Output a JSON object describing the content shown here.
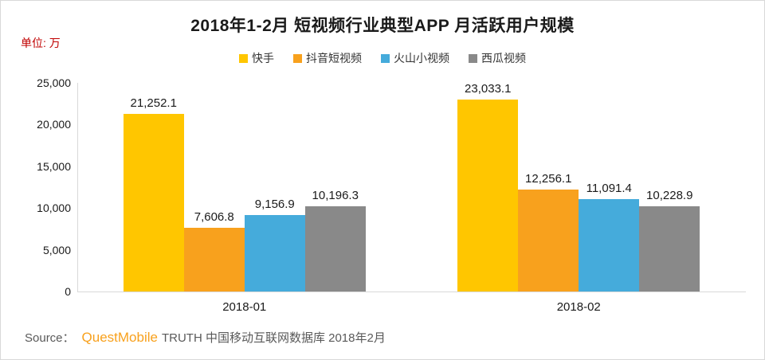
{
  "title": "2018年1-2月 短视频行业典型APP 月活跃用户规模",
  "unit_label": "单位: 万",
  "source": {
    "prefix": "Source：",
    "brand": "QuestMobile",
    "suffix": "TRUTH 中国移动互联网数据库 2018年2月"
  },
  "colors": {
    "background": "#FFFFFF",
    "page_border": "#D9D9D9",
    "title_text": "#1A1A1A",
    "unit_label": "#C00000",
    "axis_text": "#1A1A1A",
    "axis_line": "#D9D9D9",
    "value_label": "#1A1A1A",
    "legend_text": "#333333",
    "source_text": "#595959",
    "brand_orange": "#F8A11D"
  },
  "chart_data": {
    "type": "bar",
    "categories": [
      "2018-01",
      "2018-02"
    ],
    "series": [
      {
        "key": "kuaishou",
        "name": "快手",
        "color": "#FFC600",
        "values": [
          21252.1,
          23033.1
        ],
        "labels": [
          "21,252.1",
          "23,033.1"
        ]
      },
      {
        "key": "douyin",
        "name": "抖音短视频",
        "color": "#F8A11D",
        "values": [
          7606.8,
          12256.1
        ],
        "labels": [
          "7,606.8",
          "12,256.1"
        ]
      },
      {
        "key": "huoshan",
        "name": "火山小视频",
        "color": "#45ABDB",
        "values": [
          9156.9,
          11091.4
        ],
        "labels": [
          "9,156.9",
          "11,091.4"
        ]
      },
      {
        "key": "xigua",
        "name": "西瓜视频",
        "color": "#898989",
        "values": [
          10196.3,
          10228.9
        ],
        "labels": [
          "10,196.3",
          "10,228.9"
        ]
      }
    ],
    "ylim": [
      0,
      25000
    ],
    "yticks": [
      0,
      5000,
      10000,
      15000,
      20000,
      25000
    ],
    "ytick_labels": [
      "0",
      "5,000",
      "10,000",
      "15,000",
      "20,000",
      "25,000"
    ],
    "grid": false,
    "legend_position": "top",
    "value_labels_shown": true
  }
}
